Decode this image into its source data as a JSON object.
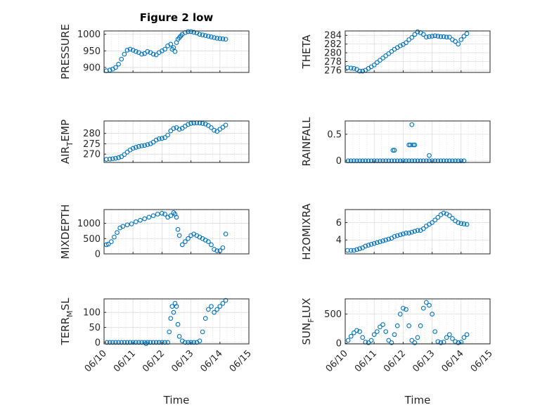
{
  "figure": {
    "title": "Figure 2 low",
    "xlabel": "Time",
    "marker_color": "#0072BD",
    "axis_color": "#262626",
    "grid_color": "#dcdcdc"
  },
  "chart_data": [
    {
      "type": "scatter",
      "ylabel": "PRESSURE",
      "ylabel_sub": "",
      "title": "Figure 2 low",
      "ylim": [
        885,
        1010
      ],
      "yticks": [
        900,
        950,
        1000
      ],
      "xlim": [
        0,
        5
      ],
      "xticks": [
        "06/10",
        "06/11",
        "06/12",
        "06/13",
        "06/14",
        "06/15"
      ],
      "show_xticklabels": false,
      "x": [
        0.08,
        0.2,
        0.3,
        0.4,
        0.5,
        0.6,
        0.7,
        0.8,
        0.9,
        1.0,
        1.1,
        1.2,
        1.3,
        1.4,
        1.5,
        1.6,
        1.7,
        1.8,
        1.9,
        2.0,
        2.1,
        2.2,
        2.3,
        2.35,
        2.4,
        2.45,
        2.5,
        2.55,
        2.6,
        2.65,
        2.7,
        2.8,
        2.9,
        3.0,
        3.1,
        3.2,
        3.3,
        3.4,
        3.5,
        3.6,
        3.7,
        3.8,
        3.9,
        4.0,
        4.1,
        4.2
      ],
      "y": [
        890,
        892,
        895,
        900,
        910,
        925,
        940,
        952,
        955,
        952,
        948,
        945,
        940,
        942,
        948,
        945,
        940,
        938,
        945,
        950,
        955,
        965,
        970,
        955,
        960,
        948,
        975,
        985,
        990,
        995,
        1000,
        1005,
        1008,
        1008,
        1006,
        1004,
        1000,
        998,
        996,
        994,
        992,
        990,
        988,
        987,
        986,
        985
      ]
    },
    {
      "type": "scatter",
      "ylabel": "THETA",
      "ylabel_sub": "",
      "ylim": [
        275.5,
        285
      ],
      "yticks": [
        276,
        278,
        280,
        282,
        284
      ],
      "xlim": [
        0,
        5
      ],
      "xticks": [
        "06/10",
        "06/11",
        "06/12",
        "06/13",
        "06/14",
        "06/15"
      ],
      "show_xticklabels": false,
      "x": [
        0.08,
        0.2,
        0.3,
        0.4,
        0.5,
        0.6,
        0.7,
        0.8,
        0.9,
        1.0,
        1.1,
        1.2,
        1.3,
        1.4,
        1.5,
        1.6,
        1.7,
        1.8,
        1.9,
        2.0,
        2.1,
        2.2,
        2.3,
        2.4,
        2.5,
        2.6,
        2.7,
        2.8,
        2.9,
        3.0,
        3.1,
        3.2,
        3.3,
        3.4,
        3.5,
        3.6,
        3.7,
        3.8,
        3.9,
        4.0,
        4.1,
        4.2
      ],
      "y": [
        276.6,
        276.5,
        276.4,
        276.2,
        275.8,
        275.8,
        276.0,
        276.4,
        276.8,
        277.2,
        277.8,
        278.3,
        278.8,
        279.3,
        279.8,
        280.3,
        280.8,
        281.2,
        281.6,
        281.9,
        282.3,
        283.0,
        283.5,
        284.2,
        284.8,
        284.6,
        284.2,
        283.6,
        283.7,
        283.8,
        283.9,
        283.8,
        283.7,
        283.7,
        283.6,
        283.6,
        283.0,
        282.6,
        282.0,
        283.0,
        283.8,
        284.4
      ]
    },
    {
      "type": "scatter",
      "ylabel": "AIR",
      "ylabel_sub": "T",
      "ylabel_rest": "EMP",
      "ylim": [
        266,
        286
      ],
      "yticks": [
        270,
        275,
        280
      ],
      "xlim": [
        0,
        5
      ],
      "xticks": [
        "06/10",
        "06/11",
        "06/12",
        "06/13",
        "06/14",
        "06/15"
      ],
      "show_xticklabels": false,
      "x": [
        0.08,
        0.2,
        0.3,
        0.4,
        0.5,
        0.6,
        0.7,
        0.8,
        0.9,
        1.0,
        1.1,
        1.2,
        1.3,
        1.4,
        1.5,
        1.6,
        1.7,
        1.8,
        1.9,
        2.0,
        2.1,
        2.2,
        2.3,
        2.4,
        2.5,
        2.6,
        2.7,
        2.8,
        2.9,
        3.0,
        3.1,
        3.2,
        3.3,
        3.4,
        3.5,
        3.6,
        3.7,
        3.8,
        3.9,
        4.0,
        4.1,
        4.2
      ],
      "y": [
        267.5,
        267.6,
        267.8,
        268.0,
        268.3,
        268.8,
        269.8,
        271.0,
        272.0,
        272.8,
        273.3,
        273.7,
        274.0,
        274.2,
        274.6,
        275.0,
        275.8,
        276.8,
        277.4,
        277.6,
        278.0,
        279.2,
        281.2,
        282.4,
        282.8,
        282.0,
        282.5,
        283.5,
        284.3,
        284.8,
        285.0,
        285.1,
        285.0,
        284.8,
        284.5,
        283.8,
        282.8,
        281.5,
        281.0,
        282.0,
        283.0,
        284.0
      ]
    },
    {
      "type": "scatter",
      "ylabel": "RAINFALL",
      "ylabel_sub": "",
      "ylim": [
        -0.03,
        0.75
      ],
      "yticks": [
        0,
        0.5
      ],
      "xlim": [
        0,
        5
      ],
      "xticks": [
        "06/10",
        "06/11",
        "06/12",
        "06/13",
        "06/14",
        "06/15"
      ],
      "show_xticklabels": false,
      "x": [
        0.1,
        0.2,
        0.3,
        0.4,
        0.5,
        0.6,
        0.7,
        0.8,
        0.9,
        1.0,
        1.1,
        1.2,
        1.3,
        1.4,
        1.5,
        1.6,
        1.7,
        1.8,
        1.9,
        2.0,
        2.1,
        2.2,
        2.3,
        2.4,
        2.5,
        2.6,
        2.7,
        2.8,
        2.9,
        3.0,
        3.1,
        3.2,
        3.3,
        3.4,
        3.5,
        3.6,
        3.7,
        3.8,
        3.9,
        4.0,
        4.1,
        1.65,
        1.7,
        2.2,
        2.25,
        2.35,
        2.4,
        2.3,
        2.9
      ],
      "y": [
        0,
        0,
        0,
        0,
        0,
        0,
        0,
        0,
        0,
        0,
        0,
        0,
        0,
        0,
        0,
        0,
        0,
        0,
        0,
        0,
        0,
        0,
        0,
        0,
        0,
        0,
        0,
        0,
        0,
        0,
        0,
        0,
        0,
        0,
        0,
        0,
        0,
        0,
        0,
        0,
        0,
        0.2,
        0.2,
        0.3,
        0.3,
        0.3,
        0.3,
        0.68,
        0.1
      ]
    },
    {
      "type": "scatter",
      "ylabel": "MIXDEPTH",
      "ylabel_sub": "",
      "ylim": [
        0,
        1450
      ],
      "yticks": [
        0,
        500,
        1000
      ],
      "xlim": [
        0,
        5
      ],
      "xticks": [
        "06/10",
        "06/11",
        "06/12",
        "06/13",
        "06/14",
        "06/15"
      ],
      "show_xticklabels": false,
      "x": [
        0.08,
        0.15,
        0.25,
        0.35,
        0.45,
        0.55,
        0.65,
        0.8,
        0.95,
        1.1,
        1.25,
        1.4,
        1.55,
        1.7,
        1.85,
        2.0,
        2.1,
        2.2,
        2.3,
        2.4,
        2.45,
        2.5,
        2.55,
        2.6,
        2.7,
        2.8,
        2.9,
        3.0,
        3.1,
        3.2,
        3.3,
        3.4,
        3.5,
        3.6,
        3.7,
        3.8,
        3.9,
        4.0,
        4.1,
        4.2
      ],
      "y": [
        300,
        320,
        400,
        550,
        700,
        850,
        900,
        950,
        980,
        1050,
        1100,
        1150,
        1200,
        1250,
        1300,
        1330,
        1300,
        1200,
        1250,
        1350,
        1300,
        1200,
        800,
        600,
        300,
        400,
        500,
        600,
        650,
        600,
        550,
        500,
        450,
        400,
        300,
        150,
        100,
        100,
        200,
        650
      ]
    },
    {
      "type": "scatter",
      "ylabel": "H2OMIXRA",
      "ylabel_sub": "",
      "ylim": [
        2.4,
        7.5
      ],
      "yticks": [
        4,
        6
      ],
      "xlim": [
        0,
        5
      ],
      "xticks": [
        "06/10",
        "06/11",
        "06/12",
        "06/13",
        "06/14",
        "06/15"
      ],
      "show_xticklabels": false,
      "x": [
        0.08,
        0.2,
        0.3,
        0.4,
        0.5,
        0.6,
        0.7,
        0.8,
        0.9,
        1.0,
        1.1,
        1.2,
        1.3,
        1.4,
        1.5,
        1.6,
        1.7,
        1.8,
        1.9,
        2.0,
        2.1,
        2.2,
        2.3,
        2.4,
        2.5,
        2.6,
        2.7,
        2.8,
        2.9,
        3.0,
        3.1,
        3.2,
        3.3,
        3.4,
        3.5,
        3.6,
        3.7,
        3.8,
        3.9,
        4.0,
        4.1,
        4.2
      ],
      "y": [
        2.8,
        2.8,
        2.8,
        2.9,
        3.0,
        3.1,
        3.3,
        3.4,
        3.5,
        3.6,
        3.7,
        3.8,
        3.9,
        4.0,
        4.1,
        4.2,
        4.4,
        4.5,
        4.6,
        4.7,
        4.8,
        4.8,
        4.9,
        5.0,
        5.1,
        5.1,
        5.3,
        5.6,
        5.8,
        6.0,
        6.3,
        6.6,
        6.9,
        7.1,
        7.0,
        6.8,
        6.5,
        6.2,
        6.0,
        5.9,
        5.85,
        5.8
      ]
    },
    {
      "type": "scatter",
      "ylabel": "TERR",
      "ylabel_sub": "M",
      "ylabel_rest": "SL",
      "ylim": [
        -5,
        145
      ],
      "yticks": [
        0,
        50,
        100
      ],
      "xlim": [
        0,
        5
      ],
      "xticks": [
        "06/10",
        "06/11",
        "06/12",
        "06/13",
        "06/14",
        "06/15"
      ],
      "show_xticklabels": true,
      "x": [
        0.1,
        0.2,
        0.3,
        0.4,
        0.5,
        0.6,
        0.7,
        0.8,
        0.9,
        1.0,
        1.1,
        1.2,
        1.3,
        1.4,
        1.5,
        1.6,
        1.7,
        1.8,
        1.9,
        2.0,
        2.1,
        2.2,
        2.25,
        2.3,
        2.35,
        2.4,
        2.45,
        2.5,
        2.55,
        2.6,
        2.7,
        2.8,
        2.9,
        3.0,
        3.1,
        3.2,
        3.3,
        3.4,
        3.5,
        3.6,
        3.7,
        3.8,
        3.9,
        4.0,
        4.1,
        4.2,
        1.45
      ],
      "y": [
        0,
        0,
        0,
        0,
        0,
        0,
        0,
        0,
        0,
        0,
        0,
        0,
        0,
        0,
        0,
        0,
        0,
        0,
        0,
        0,
        0,
        0,
        35,
        80,
        120,
        100,
        130,
        120,
        60,
        20,
        5,
        0,
        0,
        0,
        0,
        0,
        5,
        35,
        80,
        110,
        120,
        100,
        110,
        120,
        130,
        140,
        -4
      ]
    },
    {
      "type": "scatter",
      "ylabel": "SUN",
      "ylabel_sub": "F",
      "ylabel_rest": "LUX",
      "ylim": [
        -10,
        760
      ],
      "yticks": [
        0,
        500
      ],
      "xlim": [
        0,
        5
      ],
      "xticks": [
        "06/10",
        "06/11",
        "06/12",
        "06/13",
        "06/14",
        "06/15"
      ],
      "show_xticklabels": true,
      "x": [
        0.1,
        0.2,
        0.3,
        0.4,
        0.5,
        0.6,
        0.7,
        0.8,
        0.9,
        1.0,
        1.1,
        1.2,
        1.3,
        1.4,
        1.5,
        1.6,
        1.7,
        1.8,
        1.9,
        2.0,
        2.1,
        2.2,
        2.3,
        2.4,
        2.5,
        2.6,
        2.7,
        2.8,
        2.9,
        3.0,
        3.1,
        3.2,
        3.3,
        3.4,
        3.5,
        3.6,
        3.7,
        3.8,
        3.9,
        4.0,
        4.1,
        4.2
      ],
      "y": [
        50,
        120,
        180,
        220,
        200,
        100,
        20,
        10,
        50,
        150,
        200,
        280,
        320,
        200,
        50,
        10,
        150,
        300,
        500,
        600,
        580,
        300,
        50,
        10,
        100,
        300,
        600,
        700,
        650,
        500,
        200,
        30,
        10,
        20,
        100,
        150,
        80,
        30,
        10,
        20,
        100,
        150
      ]
    }
  ]
}
